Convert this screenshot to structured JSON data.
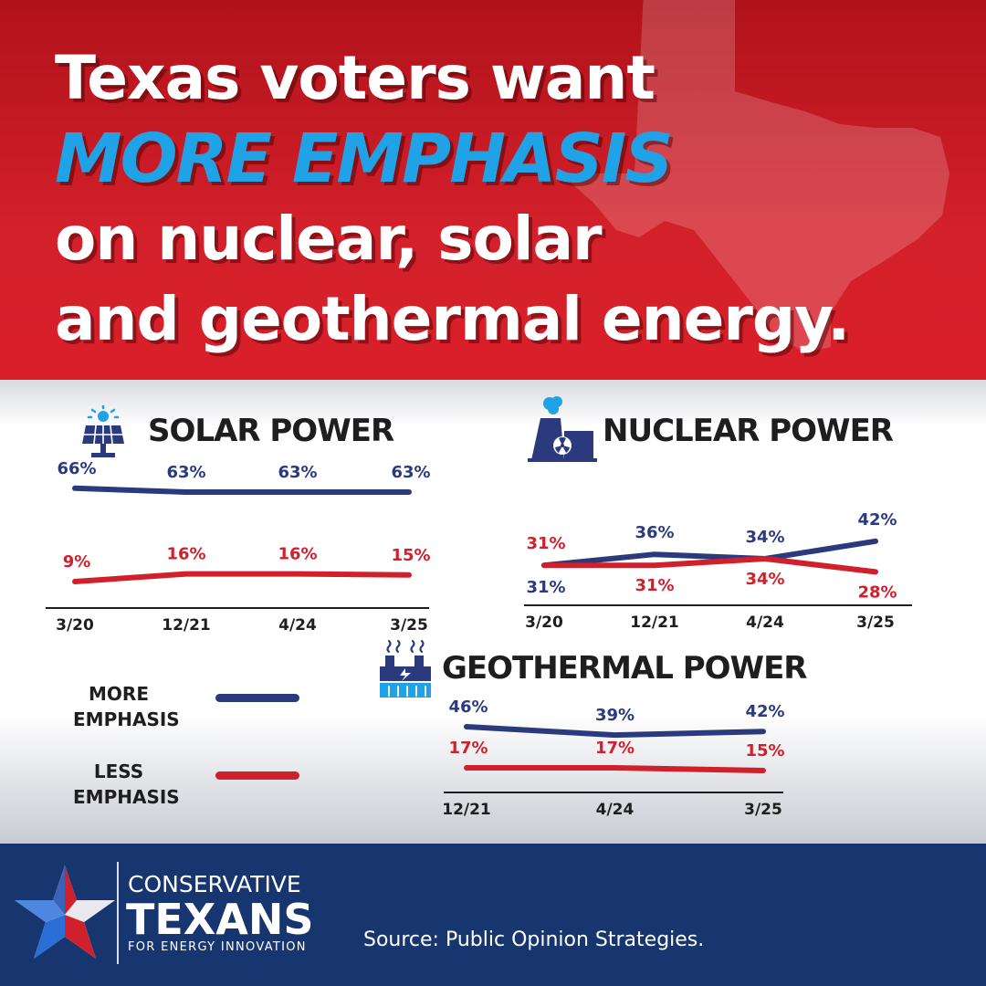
{
  "header": {
    "line1": "Texas voters want",
    "line2": "MORE EMPHASIS",
    "line3": "on nuclear, solar",
    "line4": "and geothermal energy."
  },
  "legend": {
    "more_line1": "MORE",
    "more_line2": "EMPHASIS",
    "less_line1": "LESS",
    "less_line2": "EMPHASIS"
  },
  "footer": {
    "logo_line1": "CONSERVATIVE",
    "logo_line2": "TEXANS",
    "logo_line3": "FOR ENERGY INNOVATION",
    "source": "Source: Public Opinion Strategies."
  },
  "colors": {
    "more": "#2b3a7d",
    "less": "#d0202c",
    "header_red": "#d3202a",
    "accent_blue": "#1fa3e6",
    "footer_navy": "#17356e"
  },
  "chart_data": [
    {
      "type": "line",
      "title": "SOLAR POWER",
      "icon": "solar-panel-icon",
      "categories": [
        "3/20",
        "12/21",
        "4/24",
        "3/25"
      ],
      "series": [
        {
          "name": "MORE EMPHASIS",
          "values": [
            66,
            63,
            63,
            63
          ],
          "labels": [
            "66%",
            "63%",
            "63%",
            "63%"
          ]
        },
        {
          "name": "LESS EMPHASIS",
          "values": [
            9,
            16,
            16,
            15
          ],
          "labels": [
            "9%",
            "16%",
            "16%",
            "15%"
          ]
        }
      ]
    },
    {
      "type": "line",
      "title": "NUCLEAR POWER",
      "icon": "nuclear-plant-icon",
      "categories": [
        "3/20",
        "12/21",
        "4/24",
        "3/25"
      ],
      "series": [
        {
          "name": "MORE EMPHASIS",
          "values": [
            31,
            36,
            34,
            42
          ],
          "labels": [
            "31%",
            "36%",
            "34%",
            "42%"
          ]
        },
        {
          "name": "LESS EMPHASIS",
          "values": [
            31,
            31,
            34,
            28
          ],
          "labels": [
            "31%",
            "31%",
            "34%",
            "28%"
          ]
        }
      ]
    },
    {
      "type": "line",
      "title": "GEOTHERMAL POWER",
      "icon": "geothermal-plant-icon",
      "categories": [
        "12/21",
        "4/24",
        "3/25"
      ],
      "series": [
        {
          "name": "MORE EMPHASIS",
          "values": [
            46,
            39,
            42
          ],
          "labels": [
            "46%",
            "39%",
            "42%"
          ]
        },
        {
          "name": "LESS EMPHASIS",
          "values": [
            17,
            17,
            15
          ],
          "labels": [
            "17%",
            "17%",
            "15%"
          ]
        }
      ]
    }
  ]
}
